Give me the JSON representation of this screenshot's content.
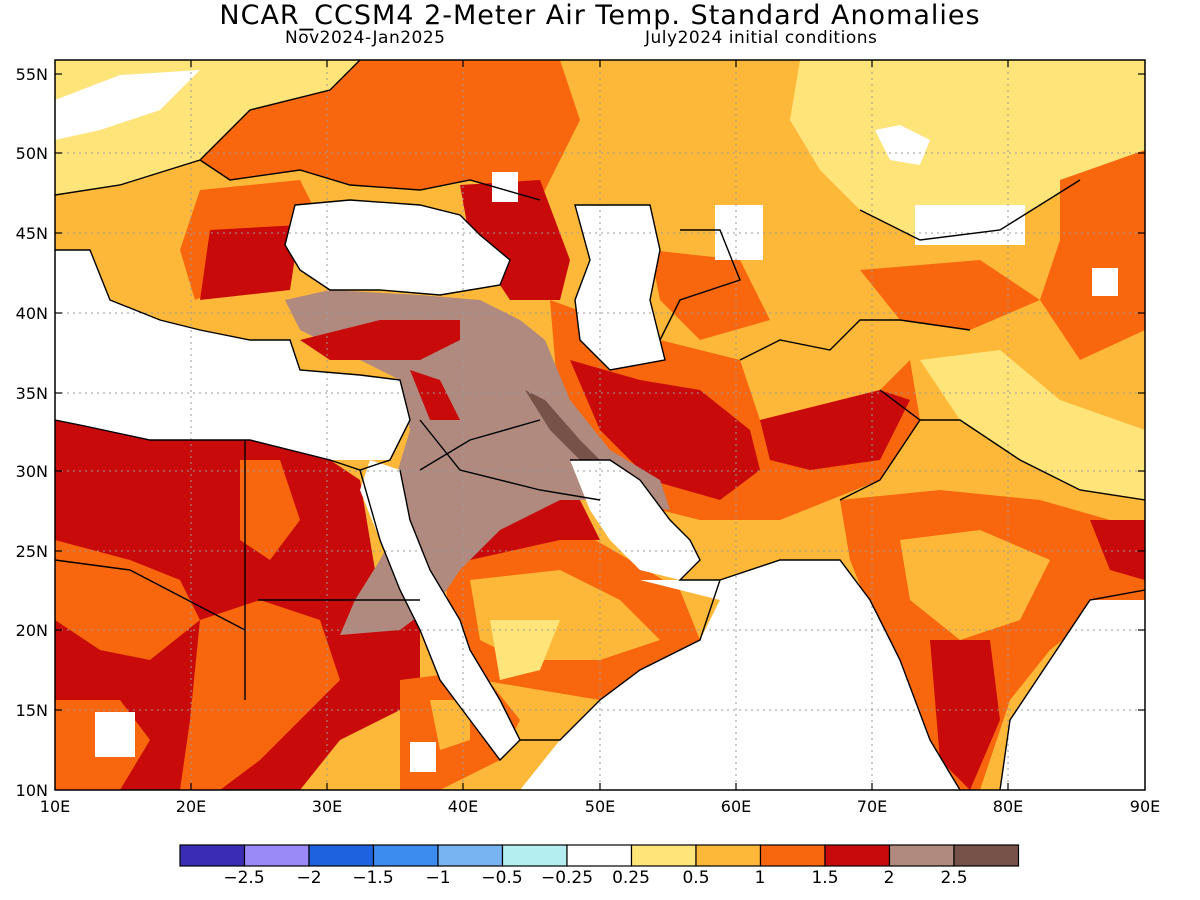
{
  "header": {
    "title": "NCAR_CCSM4 2-Meter Air Temp. Standard Anomalies",
    "period": "Nov2024-Jan2025",
    "initial_conditions": "July2024 initial conditions"
  },
  "axes": {
    "lat_labels": [
      "55N",
      "50N",
      "45N",
      "40N",
      "35N",
      "30N",
      "25N",
      "20N",
      "15N",
      "10N"
    ],
    "lon_labels": [
      "10E",
      "20E",
      "30E",
      "40E",
      "50E",
      "60E",
      "70E",
      "80E",
      "90E"
    ]
  },
  "colorbar": {
    "colors": [
      "#3a2db5",
      "#9a8af7",
      "#1f62e0",
      "#3c8cf0",
      "#78b4f2",
      "#b4eef0",
      "#ffffff",
      "#ffe47a",
      "#fdb83a",
      "#f8660d",
      "#c80a0a",
      "#b08a7e",
      "#765248"
    ],
    "labels": [
      "−2.5",
      "−2",
      "−1.5",
      "−1",
      "−0.5",
      "−0.25",
      "0.25",
      "0.5",
      "1",
      "1.5",
      "2",
      "2.5"
    ]
  }
}
